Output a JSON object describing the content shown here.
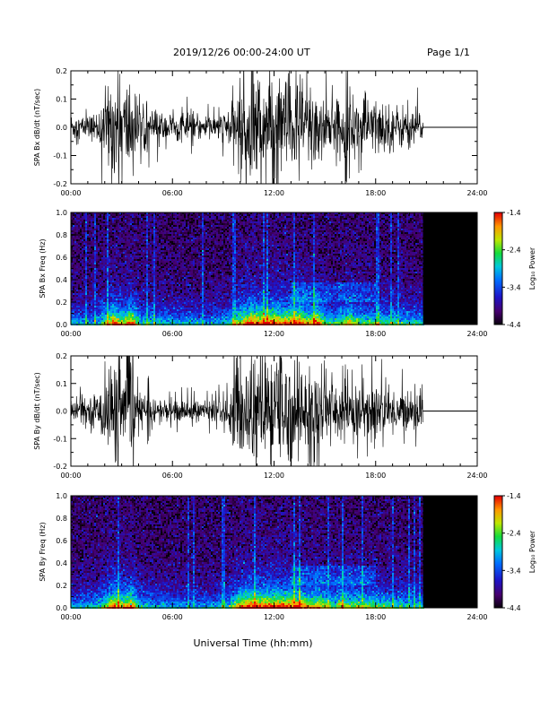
{
  "header": {
    "title": "2019/12/26  00:00-24:00 UT",
    "page": "Page 1/1"
  },
  "xaxis": {
    "label": "Universal Time (hh:mm)",
    "ticks": [
      "00:00",
      "06:00",
      "12:00",
      "18:00",
      "24:00"
    ],
    "tick_hours": [
      0,
      6,
      12,
      18,
      24
    ]
  },
  "colorbar": {
    "label": "Log₁₀ Power",
    "ticks": [
      "-1.4",
      "-2.4",
      "-3.4",
      "-4.4"
    ],
    "range": [
      -4.4,
      -1.4
    ]
  },
  "chart_data": [
    {
      "type": "line",
      "panel": "bx-waveform",
      "ylabel": "SPA Bx dB/dt (nT/sec)",
      "ylim": [
        -0.2,
        0.2
      ],
      "yticks": [
        "0.2",
        "0.1",
        "0.0",
        "-0.1",
        "-0.2"
      ],
      "xlim_hours": [
        0,
        24
      ],
      "data_end_hour": 20.8,
      "envelope": {
        "hour": [
          0,
          1,
          1.5,
          2,
          2.5,
          3,
          3.5,
          4,
          5,
          6,
          7,
          8,
          9,
          9.5,
          10,
          10.5,
          11,
          11.5,
          12,
          12.5,
          13,
          13.5,
          14,
          14.5,
          15,
          15.5,
          16,
          16.5,
          17,
          18,
          19,
          20,
          20.8
        ],
        "amplitude": [
          0.05,
          0.04,
          0.05,
          0.12,
          0.2,
          0.14,
          0.2,
          0.08,
          0.06,
          0.05,
          0.05,
          0.04,
          0.05,
          0.09,
          0.15,
          0.2,
          0.2,
          0.2,
          0.2,
          0.18,
          0.2,
          0.2,
          0.15,
          0.2,
          0.1,
          0.08,
          0.12,
          0.14,
          0.1,
          0.1,
          0.08,
          0.07,
          0.06
        ]
      }
    },
    {
      "type": "heatmap",
      "panel": "bx-spectrogram",
      "ylabel": "SPA Bx Freq (Hz)",
      "ylim": [
        0.0,
        1.0
      ],
      "yticks": [
        "1.0",
        "0.8",
        "0.6",
        "0.4",
        "0.2",
        "0.0"
      ],
      "xlim_hours": [
        0,
        24
      ],
      "data_end_hour": 20.8,
      "zlim": [
        -4.4,
        -1.4
      ]
    },
    {
      "type": "line",
      "panel": "by-waveform",
      "ylabel": "SPA By dB/dt (nT/sec)",
      "ylim": [
        -0.2,
        0.2
      ],
      "yticks": [
        "0.2",
        "0.1",
        "0.0",
        "-0.1",
        "-0.2"
      ],
      "xlim_hours": [
        0,
        24
      ],
      "data_end_hour": 20.8,
      "envelope": {
        "hour": [
          0,
          1,
          1.5,
          2,
          2.5,
          3,
          3.5,
          4,
          5,
          6,
          7,
          8,
          9,
          9.5,
          10,
          10.5,
          11,
          11.5,
          12,
          12.5,
          13,
          13.5,
          14,
          14.5,
          15,
          15.5,
          16,
          16.5,
          17,
          18,
          19,
          20,
          20.8
        ],
        "amplitude": [
          0.04,
          0.05,
          0.06,
          0.12,
          0.2,
          0.15,
          0.2,
          0.07,
          0.05,
          0.04,
          0.04,
          0.04,
          0.06,
          0.1,
          0.18,
          0.2,
          0.2,
          0.2,
          0.2,
          0.2,
          0.2,
          0.2,
          0.15,
          0.17,
          0.12,
          0.1,
          0.14,
          0.12,
          0.12,
          0.1,
          0.08,
          0.07,
          0.06
        ]
      }
    },
    {
      "type": "heatmap",
      "panel": "by-spectrogram",
      "ylabel": "SPA By Freq (Hz)",
      "ylim": [
        0.0,
        1.0
      ],
      "yticks": [
        "1.0",
        "0.8",
        "0.6",
        "0.4",
        "0.2",
        "0.0"
      ],
      "xlim_hours": [
        0,
        24
      ],
      "data_end_hour": 20.8,
      "zlim": [
        -4.4,
        -1.4
      ]
    }
  ]
}
